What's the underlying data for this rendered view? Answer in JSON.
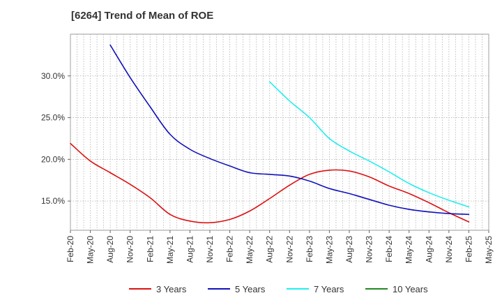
{
  "chart_data": {
    "type": "line",
    "title": "[6264]  Trend of Mean of ROE",
    "xlabel": "",
    "ylabel": "",
    "x_ticks": [
      "Feb-20",
      "May-20",
      "Aug-20",
      "Nov-20",
      "Feb-21",
      "May-21",
      "Aug-21",
      "Nov-21",
      "Feb-22",
      "May-22",
      "Aug-22",
      "Nov-22",
      "Feb-23",
      "May-23",
      "Aug-23",
      "Nov-23",
      "Feb-24",
      "May-24",
      "Aug-24",
      "Nov-24",
      "Feb-25",
      "May-25"
    ],
    "y_ticks": [
      "15.0%",
      "20.0%",
      "25.0%",
      "30.0%"
    ],
    "y_tick_values": [
      15,
      20,
      25,
      30
    ],
    "ylim": [
      11.5,
      35
    ],
    "x_range": [
      "Feb-20",
      "May-25"
    ],
    "grid": true,
    "legend_position": "bottom",
    "series": [
      {
        "name": "3 Years",
        "color": "#dd1111",
        "points": [
          [
            "Feb-20",
            21.9
          ],
          [
            "May-20",
            19.8
          ],
          [
            "Aug-20",
            18.4
          ],
          [
            "Nov-20",
            17.0
          ],
          [
            "Feb-21",
            15.4
          ],
          [
            "May-21",
            13.4
          ],
          [
            "Aug-21",
            12.6
          ],
          [
            "Nov-21",
            12.4
          ],
          [
            "Feb-22",
            12.8
          ],
          [
            "May-22",
            13.8
          ],
          [
            "Aug-22",
            15.3
          ],
          [
            "Nov-22",
            16.9
          ],
          [
            "Feb-23",
            18.2
          ],
          [
            "May-23",
            18.7
          ],
          [
            "Aug-23",
            18.6
          ],
          [
            "Nov-23",
            17.9
          ],
          [
            "Feb-24",
            16.8
          ],
          [
            "May-24",
            15.9
          ],
          [
            "Aug-24",
            14.8
          ],
          [
            "Nov-24",
            13.6
          ],
          [
            "Feb-25",
            12.5
          ]
        ]
      },
      {
        "name": "5 Years",
        "color": "#1111bb",
        "points": [
          [
            "Aug-20",
            33.7
          ],
          [
            "Nov-20",
            29.8
          ],
          [
            "Feb-21",
            26.3
          ],
          [
            "May-21",
            23.0
          ],
          [
            "Aug-21",
            21.2
          ],
          [
            "Nov-21",
            20.1
          ],
          [
            "Feb-22",
            19.2
          ],
          [
            "May-22",
            18.4
          ],
          [
            "Aug-22",
            18.2
          ],
          [
            "Nov-22",
            18.0
          ],
          [
            "Feb-23",
            17.4
          ],
          [
            "May-23",
            16.5
          ],
          [
            "Aug-23",
            15.9
          ],
          [
            "Nov-23",
            15.2
          ],
          [
            "Feb-24",
            14.5
          ],
          [
            "May-24",
            14.0
          ],
          [
            "Aug-24",
            13.7
          ],
          [
            "Nov-24",
            13.5
          ],
          [
            "Feb-25",
            13.4
          ]
        ]
      },
      {
        "name": "7 Years",
        "color": "#22eeee",
        "points": [
          [
            "Aug-22",
            29.3
          ],
          [
            "Nov-22",
            27.0
          ],
          [
            "Feb-23",
            25.0
          ],
          [
            "May-23",
            22.5
          ],
          [
            "Aug-23",
            21.0
          ],
          [
            "Nov-23",
            19.8
          ],
          [
            "Feb-24",
            18.5
          ],
          [
            "May-24",
            17.1
          ],
          [
            "Aug-24",
            16.0
          ],
          [
            "Nov-24",
            15.1
          ],
          [
            "Feb-25",
            14.3
          ]
        ]
      },
      {
        "name": "10 Years",
        "color": "#228822",
        "points": []
      }
    ]
  }
}
